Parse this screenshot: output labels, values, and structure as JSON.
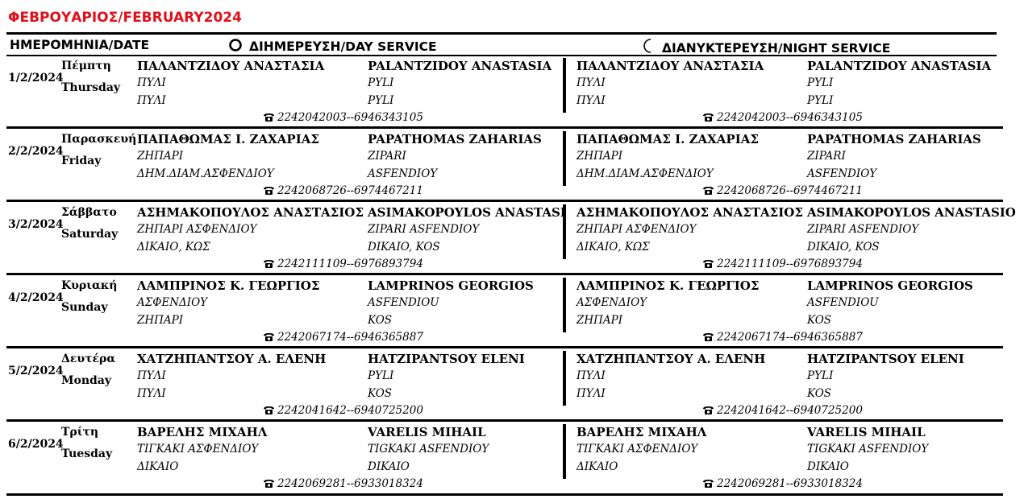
{
  "title": "ΦΕΒΡΟΥΑΡΙΟΣ/FEBRUARY2024",
  "header": {
    "date_col": "ΗΜΕΡΟΜΗΝΙΑ/DATE",
    "day_service": "ΔΙΗΜΕΡΕΥΣΗ/DAY SERVICE",
    "night_service": "ΔΙΑΝΥΚΤΕΡΕΥΣΗ/NIGHT SERVICE",
    "day_icon": "sun-circle-icon",
    "night_icon": "crescent-moon-icon"
  },
  "phone_icon": "telephone-icon",
  "rows": [
    {
      "date": "1/2/2024",
      "day_gr": "Πέμπτη",
      "day_en": "Thursday",
      "day": {
        "name_gr": "ΠΑΛΑΝΤΖΙΔΟΥ ΑΝΑΣΤΑΣΙΑ",
        "name_en": "PALANTZIDOY ANASTASIA",
        "addr1_gr": "ΠΥΛΙ",
        "addr1_en": "PYLI",
        "addr2_gr": "ΠΥΛΙ",
        "addr2_en": "PYLI",
        "phone": "2242042003--6946343105"
      },
      "night": {
        "name_gr": "ΠΑΛΑΝΤΖΙΔΟΥ ΑΝΑΣΤΑΣΙΑ",
        "name_en": "PALANTZIDOY ANASTASIA",
        "addr1_gr": "ΠΥΛΙ",
        "addr1_en": "PYLI",
        "addr2_gr": "ΠΥΛΙ",
        "addr2_en": "PYLI",
        "phone": "2242042003--6946343105"
      }
    },
    {
      "date": "2/2/2024",
      "day_gr": "Παρασκευή",
      "day_en": "Friday",
      "day": {
        "name_gr": "ΠΑΠΑΘΩΜΑΣ Ι. ΖΑΧΑΡΙΑΣ",
        "name_en": "PAPATHOMAS ZAHARIAS",
        "addr1_gr": "ΖΗΠΑΡΙ",
        "addr1_en": "ZIPARI",
        "addr2_gr": "ΔΗΜ.ΔΙΑΜ.ΑΣΦΕΝΔΙΟΥ",
        "addr2_en": "ASFENDIOY",
        "phone": "2242068726--6974467211"
      },
      "night": {
        "name_gr": "ΠΑΠΑΘΩΜΑΣ Ι. ΖΑΧΑΡΙΑΣ",
        "name_en": "PAPATHOMAS ZAHARIAS",
        "addr1_gr": "ΖΗΠΑΡΙ",
        "addr1_en": "ZIPARI",
        "addr2_gr": "ΔΗΜ.ΔΙΑΜ.ΑΣΦΕΝΔΙΟΥ",
        "addr2_en": "ASFENDIOY",
        "phone": "2242068726--6974467211"
      }
    },
    {
      "date": "3/2/2024",
      "day_gr": "Σάββατο",
      "day_en": "Saturday",
      "day": {
        "name_gr": "ΑΣΗΜΑΚΟΠΟΥΛΟΣ ΑΝΑΣΤΑΣΙΟΣ",
        "name_en": "ASIMAKOPOYLOS ANASTASI",
        "addr1_gr": "ΖΗΠΑΡΙ ΑΣΦΕΝΔΙΟΥ",
        "addr1_en": "ZIPARI ASFENDIOY",
        "addr2_gr": "ΔΙΚΑΙΟ, ΚΩΣ",
        "addr2_en": "DIKAIO, KOS",
        "phone": "2242111109--6976893794"
      },
      "night": {
        "name_gr": "ΑΣΗΜΑΚΟΠΟΥΛΟΣ ΑΝΑΣΤΑΣΙΟΣ",
        "name_en": "ASIMAKOPOYLOS ANASTASIO",
        "addr1_gr": "ΖΗΠΑΡΙ ΑΣΦΕΝΔΙΟΥ",
        "addr1_en": "ZIPARI ASFENDIOY",
        "addr2_gr": "ΔΙΚΑΙΟ, ΚΩΣ",
        "addr2_en": "DIKAIO, KOS",
        "phone": "2242111109--6976893794"
      }
    },
    {
      "date": "4/2/2024",
      "day_gr": "Κυριακή",
      "day_en": "Sunday",
      "day": {
        "name_gr": "ΛΑΜΠΡΙΝΟΣ Κ. ΓΕΩΡΓΙΟΣ",
        "name_en": "LAMPRINOS GEORGIOS",
        "addr1_gr": "ΑΣΦΕΝΔΙΟΥ",
        "addr1_en": "ASFENDIOU",
        "addr2_gr": "ΖΗΠΑΡΙ",
        "addr2_en": "KOS",
        "phone": "2242067174--6946365887"
      },
      "night": {
        "name_gr": "ΛΑΜΠΡΙΝΟΣ Κ. ΓΕΩΡΓΙΟΣ",
        "name_en": "LAMPRINOS GEORGIOS",
        "addr1_gr": "ΑΣΦΕΝΔΙΟΥ",
        "addr1_en": "ASFENDIOU",
        "addr2_gr": "ΖΗΠΑΡΙ",
        "addr2_en": "KOS",
        "phone": "2242067174--6946365887"
      }
    },
    {
      "date": "5/2/2024",
      "day_gr": "Δευτέρα",
      "day_en": "Monday",
      "day": {
        "name_gr": "ΧΑΤΖΗΠΑΝΤΣΟΥ Α. ΕΛΕΝΗ",
        "name_en": "HATZIPANTSOY ELENI",
        "addr1_gr": "ΠΥΛΙ",
        "addr1_en": "PYLI",
        "addr2_gr": "ΠΥΛΙ",
        "addr2_en": "KOS",
        "phone": "2242041642--6940725200"
      },
      "night": {
        "name_gr": "ΧΑΤΖΗΠΑΝΤΣΟΥ Α. ΕΛΕΝΗ",
        "name_en": "HATZIPANTSOY ELENI",
        "addr1_gr": "ΠΥΛΙ",
        "addr1_en": "PYLI",
        "addr2_gr": "ΠΥΛΙ",
        "addr2_en": "KOS",
        "phone": "2242041642--6940725200"
      }
    },
    {
      "date": "6/2/2024",
      "day_gr": "Τρίτη",
      "day_en": "Tuesday",
      "day": {
        "name_gr": "ΒΑΡΕΛΗΣ ΜΙΧΑΗΛ",
        "name_en": "VARELIS MIHAIL",
        "addr1_gr": "ΤΙΓΚΑΚΙ ΑΣΦΕΝΔΙΟΥ",
        "addr1_en": "TIGKAKI ASFENDIOY",
        "addr2_gr": "ΔΙΚΑΙΟ",
        "addr2_en": "DIKAIO",
        "phone": "2242069281--6933018324"
      },
      "night": {
        "name_gr": "ΒΑΡΕΛΗΣ ΜΙΧΑΗΛ",
        "name_en": "VARELIS MIHAIL",
        "addr1_gr": "ΤΙΓΚΑΚΙ ΑΣΦΕΝΔΙΟΥ",
        "addr1_en": "TIGKAKI ASFENDIOY",
        "addr2_gr": "ΔΙΚΑΙΟ",
        "addr2_en": "DIKAIO",
        "phone": "2242069281--6933018324"
      }
    }
  ]
}
